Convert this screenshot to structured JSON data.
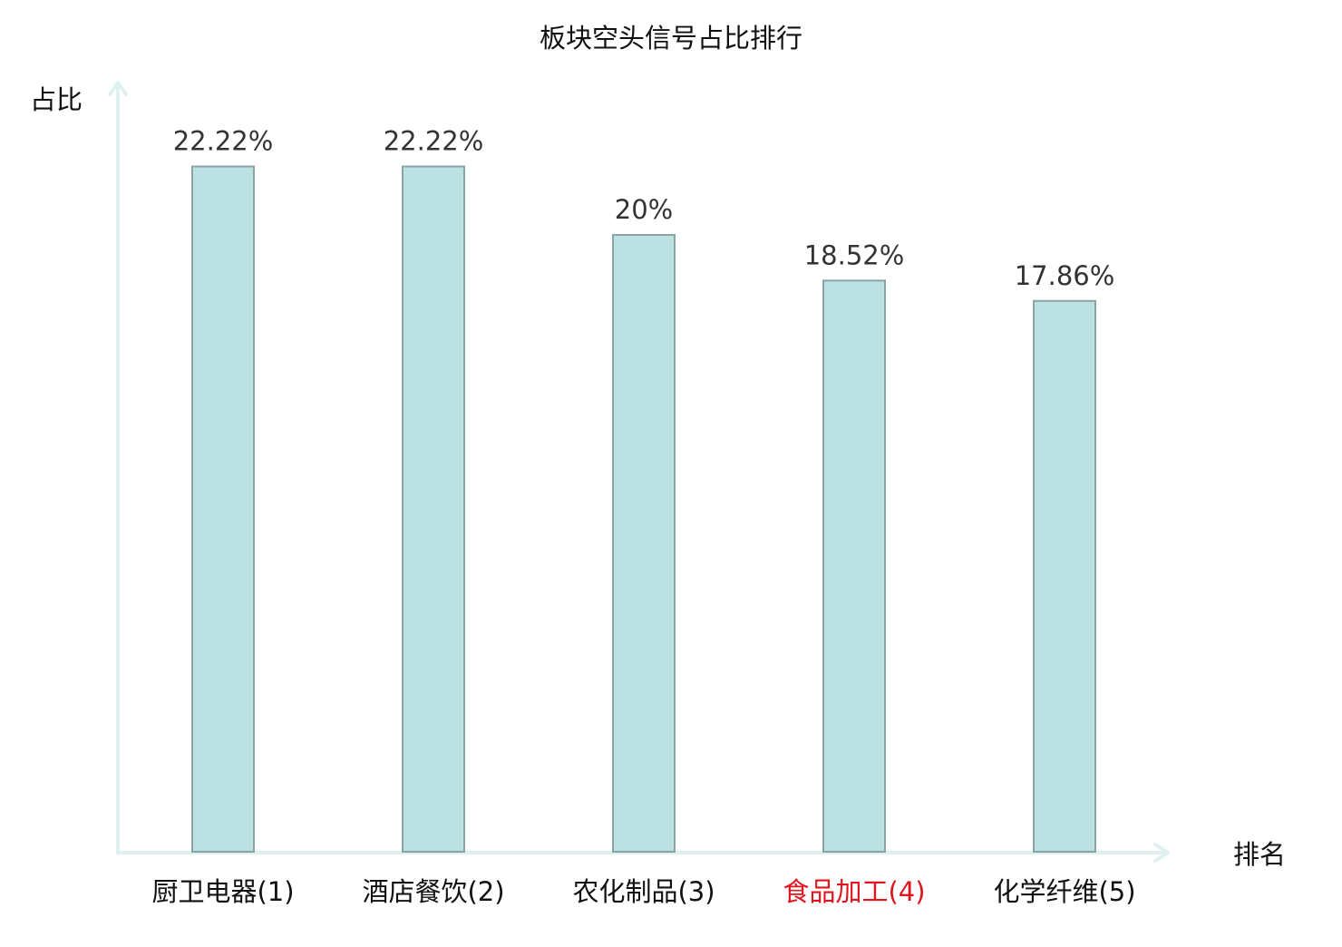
{
  "chart_data": {
    "type": "bar",
    "title": "板块空头信号占比排行",
    "ylabel": "占比",
    "xlabel": "排名",
    "categories": [
      "厨卫电器(1)",
      "酒店餐饮(2)",
      "农化制品(3)",
      "食品加工(4)",
      "化学纤维(5)"
    ],
    "values": [
      22.22,
      22.22,
      20,
      18.52,
      17.86
    ],
    "value_labels": [
      "22.22%",
      "22.22%",
      "20%",
      "18.52%",
      "17.86%"
    ],
    "highlight_index": 3,
    "grid": false,
    "legend": "none"
  },
  "colors": {
    "bar_fill": "#bce1e3",
    "bar_stroke": "#8aa3a6",
    "axis": "#dff1ef",
    "text": "#111111",
    "value_text": "#333333",
    "highlight": "#e0141e"
  }
}
